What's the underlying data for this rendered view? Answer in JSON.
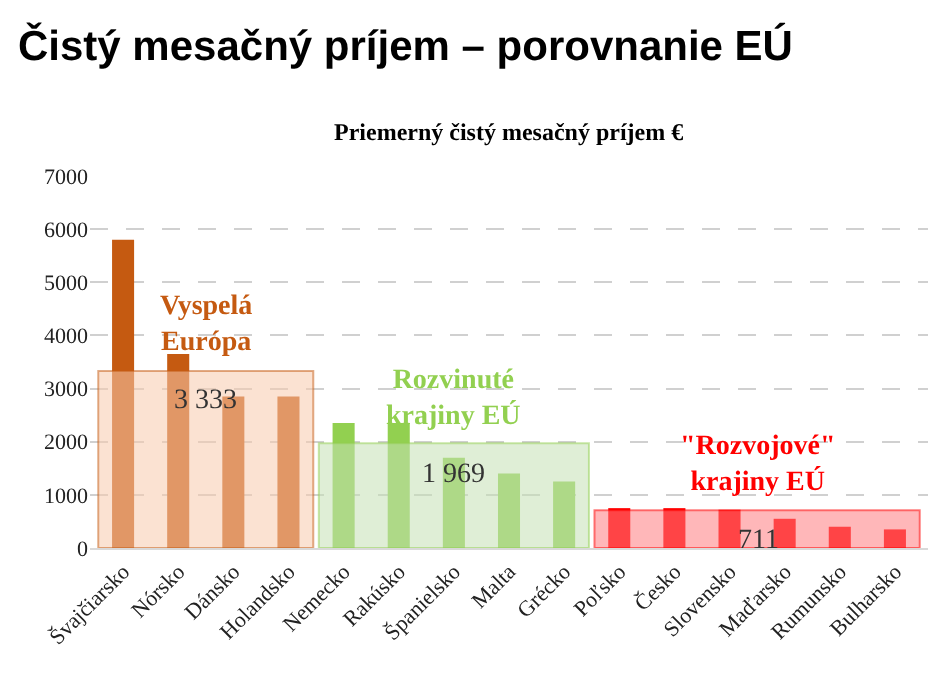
{
  "chart_data": {
    "type": "bar",
    "title": "Čistý mesačný príjem – porovnanie EÚ",
    "subtitle": "Priemerný čistý mesačný príjem €",
    "categories": [
      "Švajčiarsko",
      "Nórsko",
      "Dánsko",
      "Holandsko",
      "Nemecko",
      "Rakúsko",
      "Španielsko",
      "Malta",
      "Grécko",
      "Poľsko",
      "Česko",
      "Slovensko",
      "Maďarsko",
      "Rumunsko",
      "Bulharsko"
    ],
    "values": [
      5800,
      3650,
      2850,
      2850,
      2350,
      2350,
      1700,
      1400,
      1250,
      750,
      750,
      720,
      550,
      400,
      350
    ],
    "colors": [
      "#c55a11",
      "#c55a11",
      "#c55a11",
      "#c55a11",
      "#92d050",
      "#92d050",
      "#92d050",
      "#92d050",
      "#92d050",
      "#ff0000",
      "#ff0000",
      "#ff0000",
      "#ff0000",
      "#ff0000",
      "#ff0000"
    ],
    "bands": [
      {
        "axis": "y",
        "from": 0,
        "to": 3333,
        "label": "3 333",
        "color": "#f8cbad"
      },
      {
        "axis": "y",
        "from": 0,
        "to": 1969,
        "label": "1 969",
        "color": "#c5e0b4"
      },
      {
        "axis": "y",
        "from": 0,
        "to": 711,
        "label": "711",
        "color": "#ff7c80"
      }
    ],
    "annotations": [
      "Vyspelá\nEurópa",
      "Rozvinuté\nkrajiny EÚ",
      "\"Rozvojové\"\nkrajiny EÚ"
    ],
    "ylim": [
      0,
      7000
    ],
    "yticks": [
      0,
      1000,
      2000,
      3000,
      4000,
      5000,
      6000,
      7000
    ],
    "grid": "y"
  }
}
